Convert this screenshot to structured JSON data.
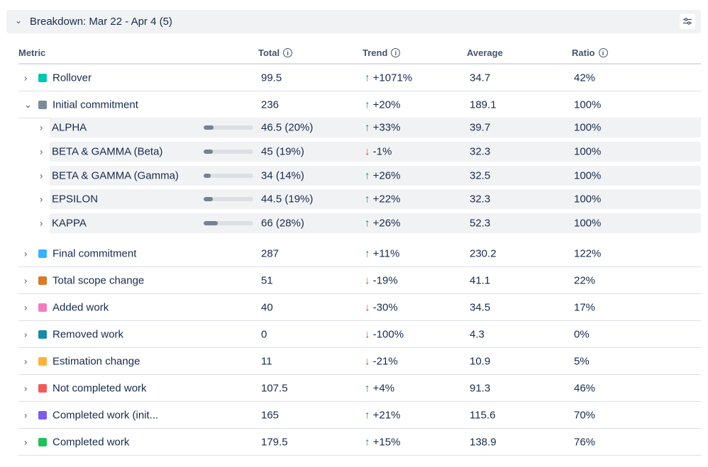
{
  "header": {
    "title": "Breakdown: Mar 22 - Apr 4 (5)"
  },
  "columns": {
    "metric": "Metric",
    "total": "Total",
    "trend": "Trend",
    "average": "Average",
    "ratio": "Ratio"
  },
  "rows": [
    {
      "name": "Rollover",
      "color": "#00c7b1",
      "total": "99.5",
      "trend": "+1071%",
      "dir": "up",
      "average": "34.7",
      "ratio": "42%",
      "expanded": false
    },
    {
      "name": "Initial commitment",
      "color": "#7b8b9a",
      "total": "236",
      "trend": "+20%",
      "dir": "up",
      "average": "189.1",
      "ratio": "100%",
      "expanded": true,
      "children": [
        {
          "name": "ALPHA",
          "total": "46.5 (20%)",
          "share": 20,
          "trend": "+33%",
          "dir": "up",
          "average": "39.7",
          "ratio": "100%"
        },
        {
          "name": "BETA & GAMMA (Beta)",
          "total": "45 (19%)",
          "share": 19,
          "trend": "-1%",
          "dir": "down",
          "average": "32.3",
          "ratio": "100%"
        },
        {
          "name": "BETA & GAMMA (Gamma)",
          "total": "34 (14%)",
          "share": 14,
          "trend": "+26%",
          "dir": "up",
          "average": "32.5",
          "ratio": "100%"
        },
        {
          "name": "EPSILON",
          "total": "44.5 (19%)",
          "share": 19,
          "trend": "+22%",
          "dir": "up",
          "average": "32.3",
          "ratio": "100%"
        },
        {
          "name": "KAPPA",
          "total": "66 (28%)",
          "share": 28,
          "trend": "+26%",
          "dir": "up",
          "average": "52.3",
          "ratio": "100%"
        }
      ]
    },
    {
      "name": "Final commitment",
      "color": "#36b2ff",
      "total": "287",
      "trend": "+11%",
      "dir": "up",
      "average": "230.2",
      "ratio": "122%"
    },
    {
      "name": "Total scope change",
      "color": "#d97b2b",
      "total": "51",
      "trend": "-19%",
      "dir": "down",
      "average": "41.1",
      "ratio": "22%"
    },
    {
      "name": "Added work",
      "color": "#f27ec0",
      "total": "40",
      "trend": "-30%",
      "dir": "down",
      "average": "34.5",
      "ratio": "17%"
    },
    {
      "name": "Removed work",
      "color": "#1a8aa6",
      "total": "0",
      "trend": "-100%",
      "dir": "down",
      "average": "4.3",
      "ratio": "0%"
    },
    {
      "name": "Estimation change",
      "color": "#ffb23b",
      "total": "11",
      "trend": "-21%",
      "dir": "down",
      "average": "10.9",
      "ratio": "5%"
    },
    {
      "name": "Not completed work",
      "color": "#f15b5b",
      "total": "107.5",
      "trend": "+4%",
      "dir": "up",
      "average": "91.3",
      "ratio": "46%"
    },
    {
      "name": "Completed work (init...",
      "color": "#7c5cf0",
      "total": "165",
      "trend": "+21%",
      "dir": "up",
      "average": "115.6",
      "ratio": "70%"
    },
    {
      "name": "Completed work",
      "color": "#22c05a",
      "total": "179.5",
      "trend": "+15%",
      "dir": "up",
      "average": "138.9",
      "ratio": "76%"
    }
  ]
}
